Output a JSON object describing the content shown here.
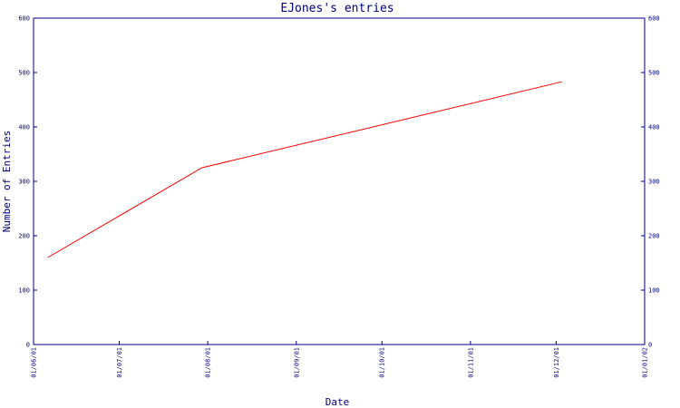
{
  "chart_data": {
    "type": "line",
    "title": "EJones's entries",
    "xlabel": "Date",
    "ylabel": "Number of Entries",
    "x_ticks": [
      "01/06/01",
      "01/07/01",
      "01/08/01",
      "01/09/01",
      "01/10/01",
      "01/11/01",
      "01/12/01",
      "01/01/02"
    ],
    "y_ticks": [
      0,
      100,
      200,
      300,
      400,
      500,
      600
    ],
    "ylim": [
      0,
      600
    ],
    "grid": false,
    "right_axis": true,
    "series": [
      {
        "color": "#ff0000",
        "points": [
          {
            "x": "2001-06-06",
            "y": 160
          },
          {
            "x": "2001-07-30",
            "y": 325
          },
          {
            "x": "2001-12-03",
            "y": 483
          }
        ]
      }
    ]
  }
}
